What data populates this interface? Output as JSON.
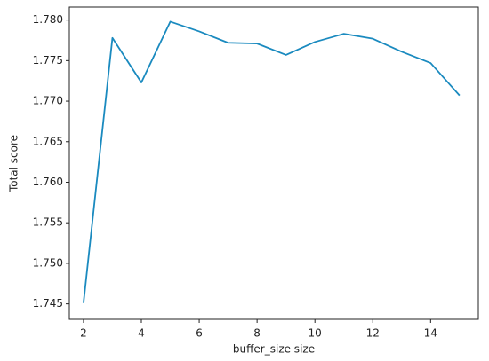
{
  "chart_data": {
    "type": "line",
    "x_label": "buffer_size size",
    "y_label": "Total score",
    "x": [
      2,
      3,
      4,
      5,
      6,
      7,
      8,
      9,
      10,
      11,
      12,
      13,
      14,
      15
    ],
    "series": [
      {
        "name": "Total score",
        "color": "#1a8abf",
        "values": [
          1.7451,
          1.7778,
          1.7723,
          1.7798,
          1.7786,
          1.7772,
          1.7771,
          1.7757,
          1.7773,
          1.7783,
          1.7777,
          1.7761,
          1.7747,
          1.7707
        ]
      }
    ],
    "xlim": [
      1.51,
      15.65
    ],
    "ylim": [
      1.7431,
      1.7816
    ],
    "xticks": [
      2,
      4,
      6,
      8,
      10,
      12,
      14
    ],
    "yticks": [
      1.745,
      {
        "value": 1.75,
        "label": "1.750"
      },
      1.755,
      {
        "value": 1.76,
        "label": "1.760"
      },
      1.765,
      {
        "value": 1.77,
        "label": "1.770"
      },
      1.775,
      {
        "value": 1.78,
        "label": "1.780"
      }
    ],
    "grid": false
  }
}
